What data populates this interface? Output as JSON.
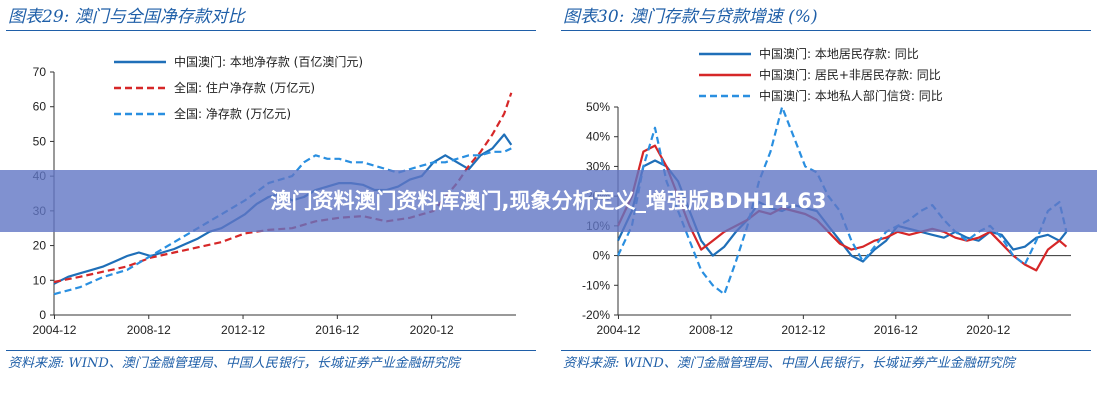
{
  "banner": {
    "text": "澳门资料澳门资料库澳门,现象分析定义_增强版BDH14.63"
  },
  "chart_data": [
    {
      "type": "line",
      "title": "图表29:  澳门与全国净存款对比",
      "xlabel": "",
      "ylabel": "",
      "ylim": [
        0,
        70
      ],
      "yticks": [
        0,
        10,
        20,
        30,
        40,
        50,
        60,
        70
      ],
      "ytick_labels": [
        "0",
        "10",
        "20",
        "30",
        "40",
        "50",
        "60",
        "70"
      ],
      "xlim": [
        2004.9,
        2024.5
      ],
      "xticks": [
        2004.92,
        2008.92,
        2012.92,
        2016.92,
        2020.92
      ],
      "xtick_labels": [
        "2004-12",
        "2008-12",
        "2012-12",
        "2016-12",
        "2020-12"
      ],
      "grid": false,
      "legend_position": "top-center",
      "series": [
        {
          "name": "中国澳门: 本地净存款 (百亿澳门元)",
          "color": "#1f6fb8",
          "dash": "solid",
          "x": [
            2004.9,
            2005.5,
            2006,
            2006.5,
            2007,
            2007.5,
            2008,
            2008.5,
            2009,
            2009.5,
            2010,
            2010.5,
            2011,
            2011.5,
            2012,
            2012.5,
            2013,
            2013.5,
            2014,
            2014.5,
            2015,
            2015.5,
            2016,
            2016.5,
            2017,
            2017.5,
            2018,
            2018.5,
            2019,
            2019.5,
            2020,
            2020.5,
            2021,
            2021.5,
            2022,
            2022.5,
            2023,
            2023.5,
            2024,
            2024.3
          ],
          "y": [
            9,
            11,
            12,
            13,
            14,
            15.5,
            17,
            18,
            17,
            18,
            19,
            20.5,
            22,
            24,
            25,
            27,
            29,
            32,
            34,
            35,
            33,
            34,
            36,
            37,
            38,
            38,
            37.5,
            36,
            36,
            37,
            39,
            40,
            44,
            46,
            44,
            42,
            46,
            48,
            52,
            49
          ]
        },
        {
          "name": "全国: 住户净存款 (万亿元)",
          "color": "#d62728",
          "dash": "dashed",
          "x": [
            2004.9,
            2006,
            2007,
            2008,
            2009,
            2010,
            2011,
            2012,
            2013,
            2014,
            2015,
            2016,
            2017,
            2018,
            2019,
            2020,
            2021,
            2022,
            2022.5,
            2023,
            2023.5,
            2024,
            2024.3
          ],
          "y": [
            9.5,
            11,
            12.5,
            14,
            16.5,
            18,
            19.5,
            21,
            23.5,
            24.5,
            25,
            27,
            28,
            28.5,
            27,
            28,
            30,
            38,
            43,
            47,
            52,
            58,
            64
          ]
        },
        {
          "name": "全国: 净存款 (万亿元)",
          "color": "#2a8fe0",
          "dash": "dashed",
          "x": [
            2004.9,
            2006,
            2007,
            2008,
            2009,
            2010,
            2011,
            2012,
            2013,
            2014,
            2015,
            2015.5,
            2016,
            2016.5,
            2017,
            2017.5,
            2018,
            2018.5,
            2019,
            2019.5,
            2020,
            2020.5,
            2021,
            2021.5,
            2022,
            2022.5,
            2023,
            2023.5,
            2024,
            2024.3
          ],
          "y": [
            6,
            8,
            11,
            13,
            17,
            21,
            25,
            29,
            33,
            38,
            40,
            44,
            46,
            45,
            45,
            44,
            44,
            43,
            42,
            41,
            42,
            43,
            44,
            44,
            45,
            46,
            46,
            47,
            47,
            48
          ]
        }
      ],
      "source": "资料来源: WIND、澳门金融管理局、中国人民银行，长城证券产业金融研究院"
    },
    {
      "type": "line",
      "title": "图表30:  澳门存款与贷款增速 (%)",
      "xlabel": "",
      "ylabel": "",
      "ylim": [
        -20,
        50
      ],
      "yticks": [
        -20,
        -10,
        0,
        10,
        20,
        30,
        40,
        50
      ],
      "ytick_labels": [
        "-20%",
        "-10%",
        "0%",
        "10%",
        "20%",
        "30%",
        "40%",
        "50%"
      ],
      "xlim": [
        2004.9,
        2024.5
      ],
      "xticks": [
        2004.92,
        2008.92,
        2012.92,
        2016.92,
        2020.92
      ],
      "xtick_labels": [
        "2004-12",
        "2008-12",
        "2012-12",
        "2016-12",
        "2020-12"
      ],
      "grid": false,
      "legend_position": "top-center",
      "series": [
        {
          "name": "中国澳门: 本地居民存款: 同比",
          "color": "#1f6fb8",
          "dash": "solid",
          "x": [
            2004.9,
            2005.5,
            2006,
            2006.5,
            2007,
            2007.5,
            2008,
            2008.5,
            2009,
            2009.5,
            2010,
            2010.5,
            2011,
            2011.5,
            2012,
            2012.5,
            2013,
            2013.5,
            2014,
            2014.5,
            2015,
            2015.5,
            2016,
            2016.5,
            2017,
            2017.5,
            2018,
            2018.5,
            2019,
            2019.5,
            2020,
            2020.5,
            2021,
            2021.5,
            2022,
            2022.5,
            2023,
            2023.5,
            2024,
            2024.3
          ],
          "y": [
            5,
            15,
            30,
            32,
            30,
            25,
            15,
            5,
            0,
            3,
            8,
            12,
            18,
            16,
            15,
            17,
            16,
            15,
            10,
            5,
            0,
            -2,
            2,
            5,
            10,
            9,
            8,
            7,
            6,
            8,
            6,
            5,
            8,
            7,
            2,
            3,
            6,
            7,
            5,
            8
          ]
        },
        {
          "name": "中国澳门: 居民+非居民存款: 同比",
          "color": "#d62728",
          "dash": "solid",
          "x": [
            2004.9,
            2005.5,
            2006,
            2006.5,
            2007,
            2007.5,
            2008,
            2008.5,
            2009,
            2009.5,
            2010,
            2010.5,
            2011,
            2011.5,
            2012,
            2012.5,
            2013,
            2013.5,
            2014,
            2014.5,
            2015,
            2015.5,
            2016,
            2016.5,
            2017,
            2017.5,
            2018,
            2018.5,
            2019,
            2019.5,
            2020,
            2020.5,
            2021,
            2021.5,
            2022,
            2022.5,
            2023,
            2023.5,
            2024,
            2024.3
          ],
          "y": [
            10,
            20,
            35,
            37,
            30,
            20,
            10,
            2,
            5,
            8,
            10,
            12,
            15,
            14,
            16,
            15,
            14,
            12,
            8,
            4,
            2,
            3,
            5,
            6,
            8,
            7,
            8,
            9,
            8,
            6,
            5,
            6,
            8,
            4,
            0,
            -3,
            -5,
            2,
            5,
            3
          ]
        },
        {
          "name": "中国澳门: 本地私人部门信贷: 同比",
          "color": "#2a8fe0",
          "dash": "dashed",
          "x": [
            2004.9,
            2005.5,
            2006,
            2006.5,
            2007,
            2007.5,
            2008,
            2008.5,
            2009,
            2009.5,
            2010,
            2010.5,
            2011,
            2011.5,
            2012,
            2012.5,
            2013,
            2013.5,
            2014,
            2014.5,
            2015,
            2015.5,
            2016,
            2016.5,
            2017,
            2017.5,
            2018,
            2018.5,
            2019,
            2019.5,
            2020,
            2020.5,
            2021,
            2021.5,
            2022,
            2022.5,
            2023,
            2023.5,
            2024,
            2024.3
          ],
          "y": [
            0,
            10,
            30,
            43,
            25,
            15,
            5,
            -5,
            -10,
            -13,
            -2,
            10,
            25,
            35,
            50,
            40,
            30,
            28,
            20,
            15,
            5,
            -2,
            3,
            8,
            10,
            12,
            15,
            17,
            12,
            8,
            5,
            8,
            10,
            6,
            0,
            -3,
            5,
            15,
            18,
            8
          ]
        }
      ],
      "source": "资料来源: WIND、澳门金融管理局、中国人民银行，长城证券产业金融研究院"
    }
  ]
}
